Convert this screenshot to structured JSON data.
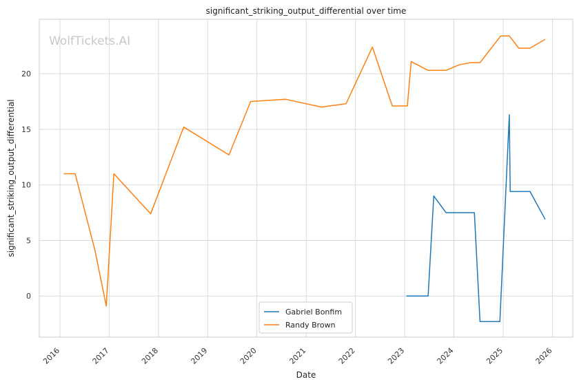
{
  "chart_data": {
    "type": "line",
    "title": "significant_striking_output_differential over time",
    "xlabel": "Date",
    "ylabel": "significant_striking_output_differential",
    "xlim": [
      "2015-08-01",
      "2026-06-01"
    ],
    "ylim": [
      -3.7,
      24.9
    ],
    "x_ticks": [
      "2016",
      "2017",
      "2018",
      "2019",
      "2020",
      "2021",
      "2022",
      "2023",
      "2024",
      "2025",
      "2026"
    ],
    "y_ticks": [
      0,
      5,
      10,
      15,
      20
    ],
    "grid": true,
    "legend_position": "lower-center",
    "watermark": "WolfTickets.AI",
    "series": [
      {
        "name": "Gabriel Bonfim",
        "color": "#1f77b4",
        "points": [
          [
            "2023-01-14",
            0.0
          ],
          [
            "2023-06-24",
            0.0
          ],
          [
            "2023-08-05",
            9.0
          ],
          [
            "2023-11-04",
            7.5
          ],
          [
            "2024-06-01",
            7.5
          ],
          [
            "2024-07-13",
            -2.3
          ],
          [
            "2024-12-07",
            -2.3
          ],
          [
            "2025-02-15",
            16.3
          ],
          [
            "2025-02-22",
            9.4
          ],
          [
            "2025-07-19",
            9.4
          ],
          [
            "2025-11-08",
            6.9
          ]
        ]
      },
      {
        "name": "Randy Brown",
        "color": "#ff7f0e",
        "points": [
          [
            "2016-01-30",
            11.0
          ],
          [
            "2016-04-23",
            11.0
          ],
          [
            "2016-09-17",
            4.1
          ],
          [
            "2016-12-10",
            -0.9
          ],
          [
            "2017-02-04",
            11.0
          ],
          [
            "2017-11-04",
            7.4
          ],
          [
            "2018-07-07",
            15.2
          ],
          [
            "2019-06-08",
            12.7
          ],
          [
            "2019-11-16",
            17.5
          ],
          [
            "2020-08-01",
            17.7
          ],
          [
            "2021-04-24",
            17.0
          ],
          [
            "2021-10-23",
            17.3
          ],
          [
            "2022-05-07",
            22.4
          ],
          [
            "2022-10-01",
            17.1
          ],
          [
            "2023-01-21",
            17.1
          ],
          [
            "2023-02-18",
            21.1
          ],
          [
            "2023-06-24",
            20.3
          ],
          [
            "2023-11-04",
            20.3
          ],
          [
            "2024-02-10",
            20.8
          ],
          [
            "2024-05-04",
            21.0
          ],
          [
            "2024-07-13",
            21.0
          ],
          [
            "2024-12-14",
            23.4
          ],
          [
            "2025-02-15",
            23.4
          ],
          [
            "2025-04-26",
            22.3
          ],
          [
            "2025-07-19",
            22.3
          ],
          [
            "2025-11-08",
            23.1
          ]
        ]
      }
    ]
  }
}
